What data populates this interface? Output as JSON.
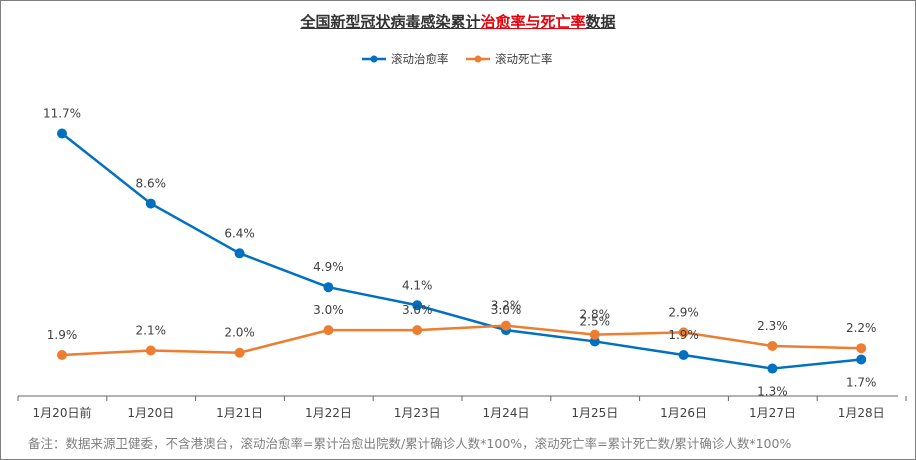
{
  "title": {
    "prefix": "全国新型冠状病毒感染累计",
    "highlight": "治愈率与死亡率",
    "suffix": "数据"
  },
  "note": "备注：数据来源卫健委，不含港澳台，滚动治愈率=累计治愈出院数/累计确诊人数*100%，滚动死亡率=累计死亡数/累计确诊人数*100%",
  "colors": {
    "recovery": "#0070c0",
    "death": "#ed7d31"
  },
  "chart_data": {
    "type": "line",
    "title": "全国新型冠状病毒感染累计治愈率与死亡率数据",
    "categories": [
      "1月20日前",
      "1月20日",
      "1月21日",
      "1月22日",
      "1月23日",
      "1月24日",
      "1月25日",
      "1月26日",
      "1月27日",
      "1月28日"
    ],
    "series": [
      {
        "name": "滚动治愈率",
        "values": [
          11.7,
          8.6,
          6.4,
          4.9,
          4.1,
          3.0,
          2.5,
          1.9,
          1.3,
          1.7
        ],
        "labels": [
          "11.7%",
          "8.6%",
          "6.4%",
          "4.9%",
          "4.1%",
          "3.0%",
          "2.5%",
          "1.9%",
          "1.3%",
          "1.7%"
        ]
      },
      {
        "name": "滚动死亡率",
        "values": [
          1.9,
          2.1,
          2.0,
          3.0,
          3.0,
          3.2,
          2.8,
          2.9,
          2.3,
          2.2
        ],
        "labels": [
          "1.9%",
          "2.1%",
          "2.0%",
          "3.0%",
          "3.0%",
          "3.2%",
          "2.8%",
          "2.9%",
          "2.3%",
          "2.2%"
        ]
      }
    ],
    "legend": "top-center",
    "grid": false
  }
}
